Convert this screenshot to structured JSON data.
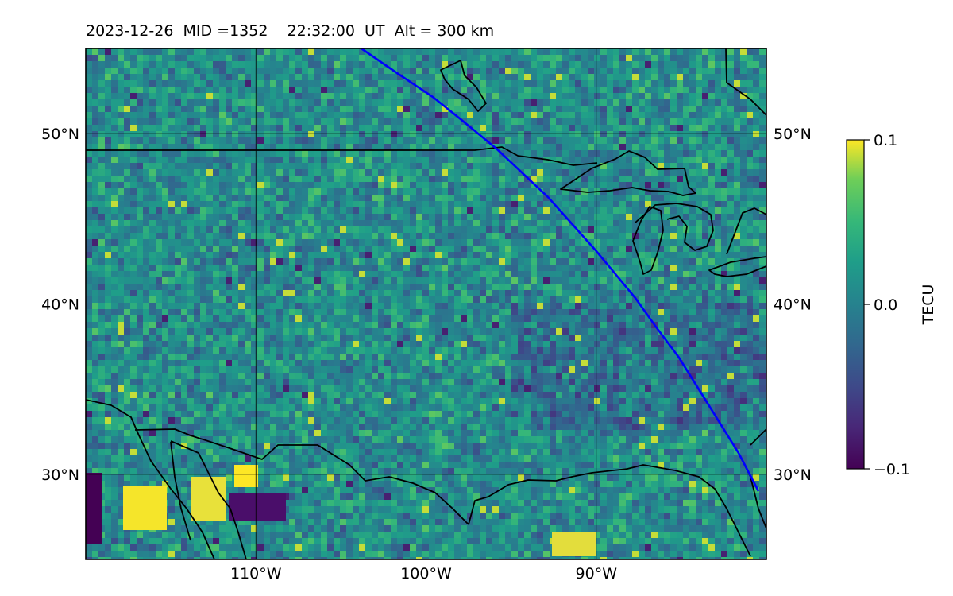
{
  "title": "2023-12-26  MID =1352    22:32:00  UT  Alt = 300 km",
  "map": {
    "lon_range": [
      -120,
      -80
    ],
    "lat_range": [
      25,
      55
    ],
    "lat_labels": [
      "50°N",
      "40°N",
      "30°N"
    ],
    "lat_values": [
      50,
      40,
      30
    ],
    "lon_labels": [
      "110°W",
      "100°W",
      "90°W"
    ],
    "lon_values": [
      -110,
      -100,
      -90
    ],
    "grid": true,
    "track_color": "#0000ff"
  },
  "colorbar": {
    "label": "TECU",
    "ticks": [
      "0.1",
      "0.0",
      "−0.1"
    ],
    "tick_values": [
      0.1,
      0.0,
      -0.1
    ],
    "colormap": "viridis",
    "range": [
      -0.1,
      0.1
    ]
  }
}
